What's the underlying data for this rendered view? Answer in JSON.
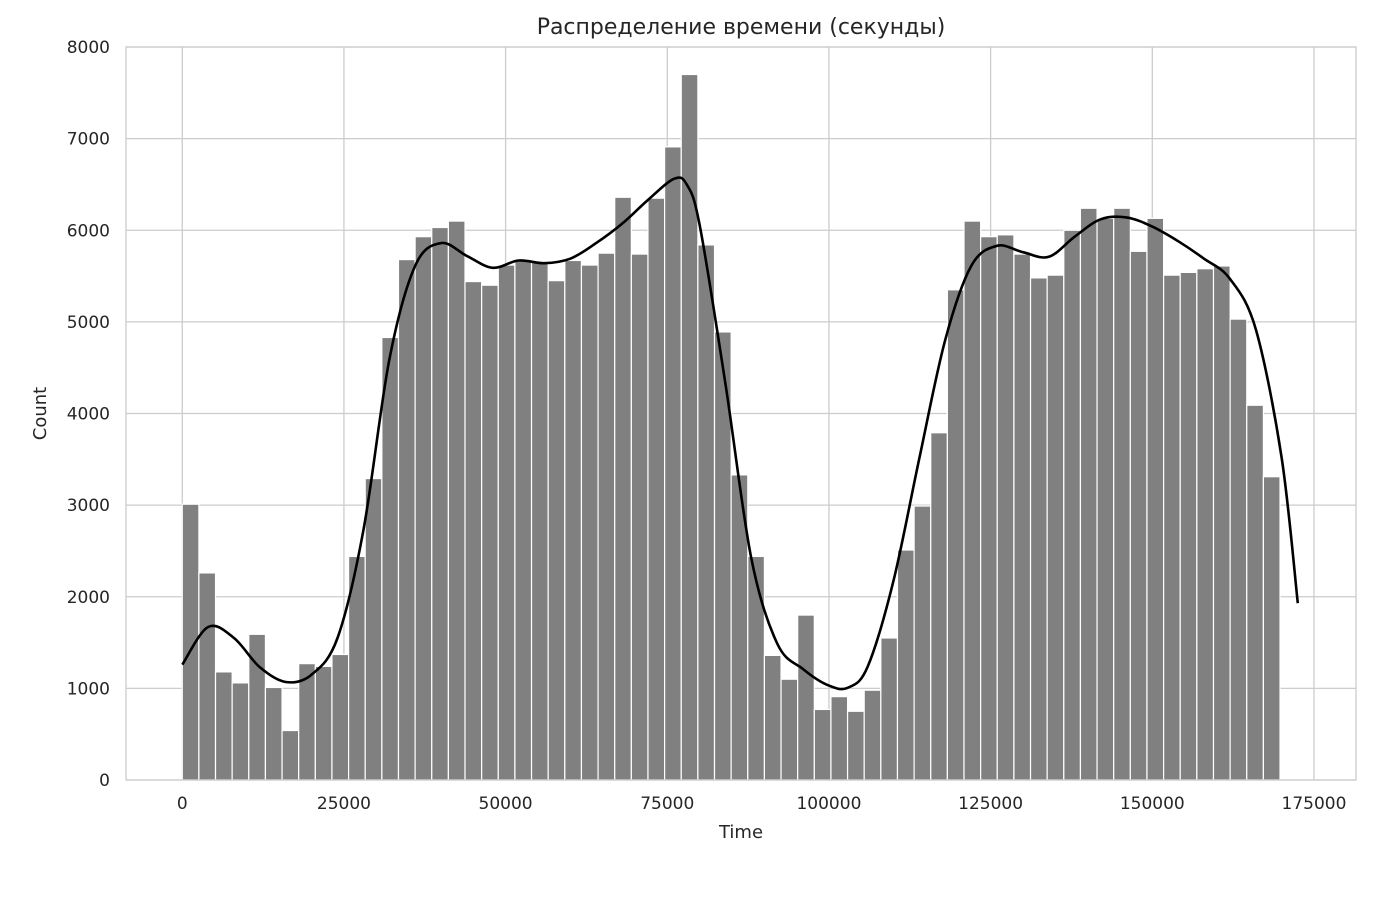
{
  "chart_data": {
    "type": "bar",
    "subtype": "histogram-with-kde",
    "title": "Распределение времени (секунды)",
    "xlabel": "Time",
    "ylabel": "Count",
    "xlim": [
      -8700,
      181500
    ],
    "ylim": [
      0,
      8000
    ],
    "xticks": [
      0,
      25000,
      50000,
      75000,
      100000,
      125000,
      150000,
      175000
    ],
    "yticks": [
      0,
      1000,
      2000,
      3000,
      4000,
      5000,
      6000,
      7000,
      8000
    ],
    "grid": true,
    "legend": "none",
    "colors": {
      "bars": "#808080",
      "kde": "#000000",
      "grid": "#cccccc",
      "text": "#262626"
    },
    "bins": {
      "start": 0,
      "width": 2572,
      "counts": [
        3010,
        2260,
        1180,
        1060,
        1590,
        1010,
        540,
        1270,
        1240,
        1370,
        2440,
        3290,
        4830,
        5680,
        5930,
        6030,
        6100,
        5440,
        5400,
        5620,
        5680,
        5650,
        5450,
        5670,
        5620,
        5750,
        6360,
        5740,
        6350,
        6910,
        7700,
        5840,
        4890,
        3330,
        2440,
        1360,
        1100,
        1800,
        770,
        910,
        750,
        980,
        1550,
        2510,
        2990,
        3790,
        5350,
        6100,
        5930,
        5950,
        5740,
        5480,
        5510,
        6000,
        6240,
        6130,
        6240,
        5770,
        6130,
        5510,
        5540,
        5580,
        5610,
        5030,
        4090,
        3310
      ]
    },
    "kde": {
      "x": [
        0,
        4000,
        8000,
        12000,
        16000,
        20000,
        24000,
        28000,
        32000,
        36000,
        40000,
        44000,
        48000,
        52000,
        56000,
        60000,
        64000,
        68000,
        72000,
        76000,
        78000,
        80000,
        84000,
        88000,
        92000,
        96000,
        100000,
        103000,
        106000,
        110000,
        114000,
        118000,
        122000,
        126000,
        130000,
        134000,
        138000,
        142000,
        146000,
        150000,
        154000,
        158000,
        162000,
        166000,
        170000,
        172500
      ],
      "y": [
        1260,
        1670,
        1550,
        1230,
        1070,
        1150,
        1550,
        2720,
        4580,
        5610,
        5860,
        5720,
        5590,
        5670,
        5640,
        5690,
        5860,
        6070,
        6330,
        6560,
        6500,
        6060,
        4320,
        2420,
        1490,
        1210,
        1030,
        1010,
        1240,
        2180,
        3520,
        4810,
        5610,
        5830,
        5760,
        5710,
        5930,
        6120,
        6140,
        6040,
        5880,
        5690,
        5470,
        4920,
        3520,
        1930
      ]
    }
  }
}
